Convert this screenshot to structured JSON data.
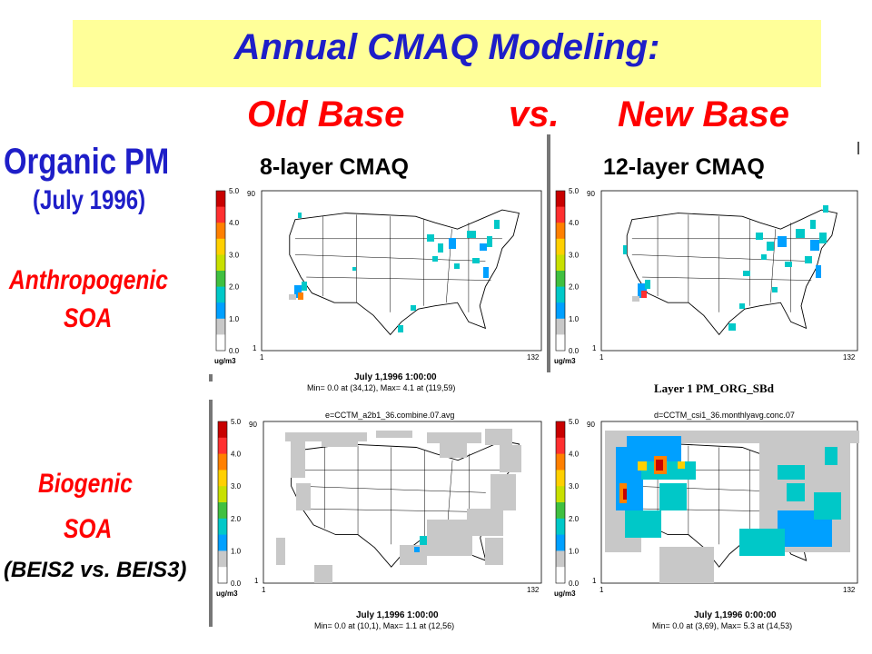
{
  "header": {
    "title": "Annual CMAQ Modeling:",
    "old_base": "Old Base",
    "vs": "vs.",
    "new_base": "New Base"
  },
  "left_labels": {
    "species": "Organic PM",
    "period": "(July 1996)",
    "row1_line1": "Anthropogenic",
    "row1_line2": "SOA",
    "row2_line1": "Biogenic",
    "row2_line2": "SOA",
    "row2_note": "(BEIS2 vs. BEIS3)"
  },
  "columns": {
    "left": "8-layer CMAQ",
    "right": "12-layer CMAQ"
  },
  "colorbar": {
    "ticks": [
      "5.0",
      "4.0",
      "3.0",
      "2.0",
      "1.0",
      "0.0"
    ],
    "unit": "ug/m3",
    "colors": [
      "#c80000",
      "#ff3030",
      "#ff8000",
      "#ffd000",
      "#c8e000",
      "#40c040",
      "#00c8c8",
      "#00a0ff",
      "#c8c8c8",
      "#ffffff"
    ]
  },
  "grid": {
    "y_top": "90",
    "y_bottom": "1",
    "x_left": "1",
    "x_right": "132"
  },
  "panels": {
    "anthro_old": {
      "date": "July 1,1996 1:00:00",
      "minmax": "Min=   0.0 at (34,12),  Max=   4.1 at (119,59)"
    },
    "anthro_new": {
      "layer": "Layer 1  PM_ORG_SBd"
    },
    "bio_old": {
      "file": "e=CCTM_a2b1_36.combine.07.avg",
      "date": "July 1,1996 1:00:00",
      "minmax": "Min=   0.0 at (10,1),  Max=   1.1 at (12,56)"
    },
    "bio_new": {
      "file": "d=CCTM_csi1_36.monthlyavg.conc.07",
      "date": "July 1,1996 0:00:00",
      "minmax": "Min=   0.0 at (3,69),  Max=   5.3 at (14,53)"
    }
  },
  "colors": {
    "banner_bg": "#ffff99",
    "title_blue": "#1e1ec8",
    "accent_red": "#ff0000"
  }
}
